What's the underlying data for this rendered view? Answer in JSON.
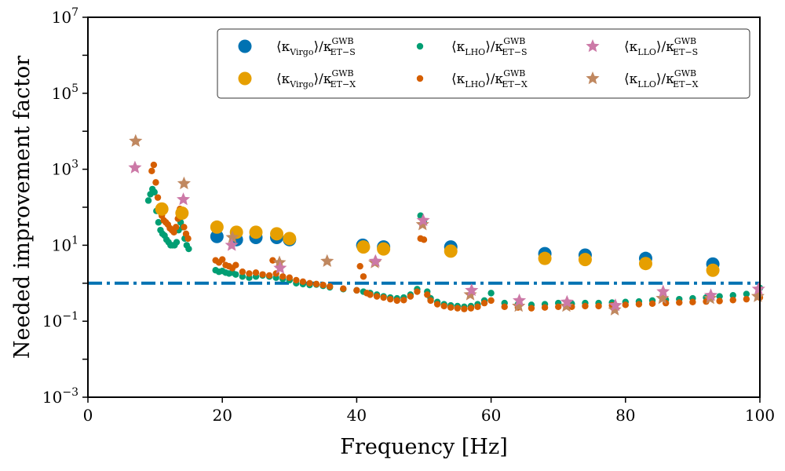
{
  "chart_data": {
    "type": "scatter",
    "title": "",
    "xlabel": "Frequency [Hz]",
    "ylabel": "Needed improvement factor",
    "xlim": [
      0,
      100
    ],
    "ylim_log10": [
      -3,
      7
    ],
    "yscale": "log",
    "x_ticks": [
      0,
      20,
      40,
      60,
      80,
      100
    ],
    "x_tick_labels": [
      "0",
      "20",
      "40",
      "60",
      "80",
      "100"
    ],
    "y_ticks_log10": [
      -3,
      -1,
      1,
      3,
      5,
      7
    ],
    "y_tick_labels": [
      {
        "base": "10",
        "exp": "−3"
      },
      {
        "base": "10",
        "exp": "−1"
      },
      {
        "base": "10",
        "exp": "1"
      },
      {
        "base": "10",
        "exp": "3"
      },
      {
        "base": "10",
        "exp": "5"
      },
      {
        "base": "10",
        "exp": "7"
      }
    ],
    "reference_line": {
      "y": 1,
      "style": "dash-dot",
      "color": "#0072b2"
    },
    "legend_position": "top-right",
    "legend_columns": 3,
    "colors": {
      "virgo_s": "#0072b2",
      "virgo_x": "#e69f00",
      "lho_s": "#009e73",
      "lho_x": "#d55e00",
      "llo_s": "#cc79a7",
      "llo_x": "#c08860"
    },
    "series": [
      {
        "name": "⟨κVirgo⟩/κGWB ET−S",
        "legend": {
          "main": "⟨κ",
          "sub": "Virgo",
          "mid": "⟩/κ",
          "sup": "GWB",
          "sub2": "ET−S"
        },
        "color_key": "virgo_s",
        "marker": "circle",
        "size": 8.5,
        "x": [
          19.2,
          22.1,
          25.0,
          28.1,
          30.0,
          40.9,
          44.0,
          54.0,
          68.0,
          74.0,
          83.0,
          93.0
        ],
        "y": [
          17,
          14,
          16,
          16,
          14,
          10,
          9,
          9,
          6,
          5.5,
          4.5,
          3.2
        ]
      },
      {
        "name": "⟨κVirgo⟩/κGWB ET−X",
        "legend": {
          "main": "⟨κ",
          "sub": "Virgo",
          "mid": "⟩/κ",
          "sup": "GWB",
          "sub2": "ET−X"
        },
        "color_key": "virgo_x",
        "marker": "circle",
        "size": 8.5,
        "x": [
          11.0,
          14.0,
          19.2,
          22.1,
          25.0,
          28.1,
          30.0,
          41.0,
          44.0,
          54.0,
          68.0,
          74.0,
          83.0,
          93.0
        ],
        "y": [
          90,
          70,
          30,
          22,
          22,
          20,
          15,
          9,
          8,
          7,
          4.5,
          4.2,
          3.3,
          2.2
        ]
      },
      {
        "name": "⟨κLHO⟩/κGWB ET−S",
        "legend": {
          "main": "⟨κ",
          "sub": "LHO",
          "mid": "⟩/κ",
          "sup": "GWB",
          "sub2": "ET−S"
        },
        "color_key": "lho_s",
        "marker": "circle",
        "size": 4.2,
        "x": [
          9.0,
          9.3,
          9.6,
          9.9,
          10.2,
          10.5,
          10.8,
          11.1,
          11.4,
          11.7,
          12.0,
          12.3,
          12.6,
          12.9,
          13.2,
          13.5,
          13.8,
          14.1,
          14.4,
          14.7,
          15.0,
          19.0,
          19.5,
          20.0,
          20.5,
          21.0,
          21.5,
          22.0,
          23.0,
          24.0,
          25.0,
          26.0,
          27.0,
          28.0,
          29.0,
          30.0,
          31.0,
          32.0,
          33.0,
          34.0,
          35.0,
          36.0,
          38.0,
          40.0,
          41.0,
          42.0,
          43.0,
          44.0,
          45.0,
          46.0,
          47.0,
          48.0,
          49.0,
          49.5,
          50.0,
          50.5,
          51.0,
          52.0,
          53.0,
          54.0,
          55.0,
          56.0,
          57.0,
          58.0,
          59.0,
          60.0,
          62.0,
          64.0,
          66.0,
          68.0,
          70.0,
          72.0,
          74.0,
          76.0,
          78.0,
          80.0,
          82.0,
          84.0,
          86.0,
          88.0,
          90.0,
          92.0,
          94.0,
          96.0,
          98.0,
          100.0
        ],
        "y": [
          150,
          220,
          300,
          250,
          80,
          40,
          25,
          20,
          18,
          14,
          12,
          10,
          10,
          10,
          12,
          25,
          40,
          30,
          15,
          10,
          8,
          2.2,
          2.0,
          2.1,
          1.9,
          1.8,
          1.9,
          1.7,
          1.5,
          1.4,
          1.5,
          1.6,
          1.5,
          1.4,
          1.3,
          1.2,
          1.0,
          0.95,
          0.9,
          0.92,
          0.85,
          0.78,
          0.7,
          0.65,
          0.6,
          0.55,
          0.5,
          0.45,
          0.42,
          0.4,
          0.42,
          0.5,
          0.7,
          60,
          40,
          0.6,
          0.4,
          0.32,
          0.28,
          0.26,
          0.25,
          0.24,
          0.25,
          0.28,
          0.35,
          0.55,
          0.3,
          0.28,
          0.27,
          0.28,
          0.3,
          0.29,
          0.3,
          0.3,
          0.31,
          0.32,
          0.33,
          0.35,
          0.37,
          0.38,
          0.4,
          0.42,
          0.45,
          0.48,
          0.52,
          0.75
        ]
      },
      {
        "name": "⟨κLHO⟩/κGWB ET−X",
        "legend": {
          "main": "⟨κ",
          "sub": "LHO",
          "mid": "⟩/κ",
          "sup": "GWB",
          "sub2": "ET−X"
        },
        "color_key": "lho_x",
        "marker": "circle",
        "size": 4.2,
        "x": [
          9.5,
          9.8,
          10.1,
          10.4,
          10.7,
          11.0,
          11.3,
          11.6,
          11.9,
          12.2,
          12.5,
          12.8,
          13.1,
          13.4,
          13.7,
          14.0,
          14.3,
          14.6,
          14.9,
          19.0,
          19.5,
          20.0,
          20.5,
          21.0,
          21.5,
          22.0,
          23.0,
          24.0,
          25.0,
          26.0,
          27.0,
          27.5,
          28.0,
          29.0,
          30.0,
          31.0,
          32.0,
          33.0,
          34.0,
          35.0,
          36.0,
          38.0,
          40.0,
          40.5,
          41.0,
          41.5,
          42.0,
          43.0,
          44.0,
          45.0,
          46.0,
          47.0,
          48.0,
          49.0,
          49.5,
          50.0,
          50.5,
          51.0,
          52.0,
          53.0,
          54.0,
          55.0,
          56.0,
          57.0,
          58.0,
          59.0,
          60.0,
          62.0,
          64.0,
          66.0,
          68.0,
          70.0,
          72.0,
          74.0,
          76.0,
          78.0,
          80.0,
          82.0,
          84.0,
          86.0,
          88.0,
          90.0,
          92.0,
          94.0,
          96.0,
          98.0,
          100.0
        ],
        "y": [
          900,
          1300,
          450,
          180,
          90,
          60,
          45,
          40,
          35,
          28,
          25,
          22,
          30,
          50,
          90,
          60,
          30,
          20,
          15,
          4.0,
          3.5,
          4.2,
          3.0,
          2.8,
          2.5,
          3.0,
          2.0,
          1.8,
          1.9,
          1.7,
          1.6,
          4.0,
          1.8,
          1.5,
          1.4,
          1.2,
          1.1,
          1.0,
          0.95,
          0.9,
          0.82,
          0.72,
          0.65,
          2.8,
          1.5,
          0.55,
          0.5,
          0.45,
          0.42,
          0.38,
          0.35,
          0.36,
          0.45,
          0.6,
          15,
          14,
          0.5,
          0.35,
          0.28,
          0.25,
          0.23,
          0.22,
          0.21,
          0.22,
          0.24,
          0.3,
          0.35,
          0.24,
          0.23,
          0.22,
          0.23,
          0.24,
          0.24,
          0.25,
          0.25,
          0.26,
          0.27,
          0.28,
          0.29,
          0.3,
          0.31,
          0.32,
          0.33,
          0.34,
          0.36,
          0.38,
          0.42
        ]
      },
      {
        "name": "⟨κLLO⟩/κGWB ET−S",
        "legend": {
          "main": "⟨κ",
          "sub": "LLO",
          "mid": "⟩/κ",
          "sup": "GWB",
          "sub2": "ET−S"
        },
        "color_key": "llo_s",
        "marker": "star",
        "size": 9,
        "x": [
          7.0,
          14.2,
          21.4,
          28.6,
          42.8,
          49.9,
          57.1,
          64.2,
          71.3,
          78.5,
          85.6,
          92.7,
          99.8
        ],
        "y": [
          1100,
          160,
          10,
          2.5,
          3.8,
          45,
          0.65,
          0.35,
          0.32,
          0.26,
          0.6,
          0.48,
          0.7
        ]
      },
      {
        "name": "⟨κLLO⟩/κGWB ET−X",
        "legend": {
          "main": "⟨κ",
          "sub": "LLO",
          "mid": "⟩/κ",
          "sup": "GWB",
          "sub2": "ET−X"
        },
        "color_key": "llo_x",
        "marker": "star",
        "size": 9,
        "x": [
          7.1,
          14.3,
          21.5,
          28.5,
          35.6,
          42.7,
          49.8,
          56.9,
          64.1,
          71.2,
          78.4,
          85.5,
          92.6,
          99.7
        ],
        "y": [
          5500,
          420,
          16,
          3.5,
          3.8,
          3.5,
          35,
          0.5,
          0.25,
          0.25,
          0.2,
          0.4,
          0.4,
          0.45
        ]
      }
    ]
  }
}
